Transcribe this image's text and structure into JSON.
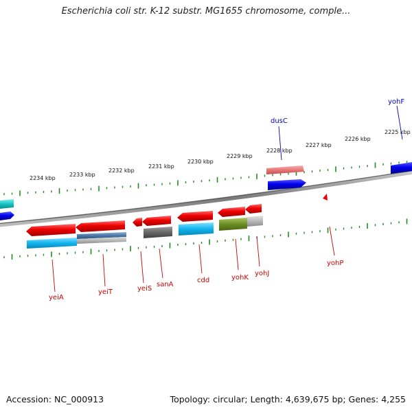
{
  "title": "Escherichia coli str. K-12 substr. MG1655 chromosome, comple...",
  "footer": {
    "accession": "Accession: NC_000913",
    "summary": "Topology: circular; Length: 4,639,675 bp; Genes: 4,255"
  },
  "colors": {
    "reverse_strand_label": "#cc0000",
    "forward_strand_label": "#0000cc",
    "tick": "#228B22",
    "backbone": "#8a8a8a"
  },
  "scale_labels": [
    "2234 kbp",
    "2233 kbp",
    "2232 kbp",
    "2231 kbp",
    "2230 kbp",
    "2229 kbp",
    "2228 kbp",
    "2227 kbp",
    "2226 kbp",
    "2225 kbp"
  ],
  "genes": {
    "forward": [
      {
        "name": "dusC",
        "color": "#0000cc"
      },
      {
        "name": "yohF",
        "color": "#0000cc"
      }
    ],
    "reverse": [
      {
        "name": "yeiA",
        "color": "#cc0000"
      },
      {
        "name": "yeiT",
        "color": "#cc0000"
      },
      {
        "name": "yeiS",
        "color": "#cc0000"
      },
      {
        "name": "sanA",
        "color": "#cc0000"
      },
      {
        "name": "cdd",
        "color": "#cc0000"
      },
      {
        "name": "yohK",
        "color": "#cc0000"
      },
      {
        "name": "yohJ",
        "color": "#cc0000"
      },
      {
        "name": "yohP",
        "color": "#cc0000"
      }
    ]
  }
}
